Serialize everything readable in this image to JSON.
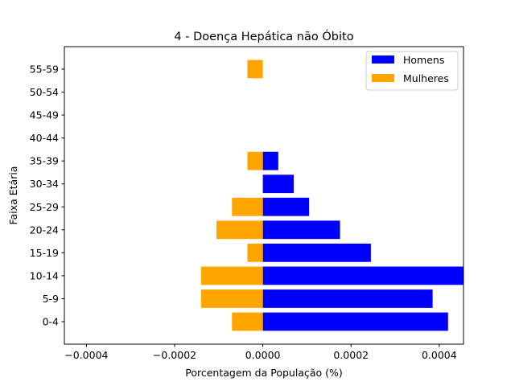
{
  "chart_data": {
    "type": "bar",
    "orientation": "horizontal",
    "title": "4 - Doença Hepática não Óbito",
    "xlabel": "Porcentagem da População (%)",
    "ylabel": "Faixa Etária",
    "categories": [
      "0-4",
      "5-9",
      "10-14",
      "15-19",
      "20-24",
      "25-29",
      "30-34",
      "35-39",
      "40-44",
      "45-49",
      "50-54",
      "55-59"
    ],
    "series": [
      {
        "name": "Homens",
        "color": "#0000ff",
        "values": [
          0.00042,
          0.000385,
          0.00046,
          0.000245,
          0.000175,
          0.000105,
          7e-05,
          3.5e-05,
          0,
          0,
          0,
          0
        ]
      },
      {
        "name": "Mulheres",
        "color": "#ffa500",
        "values": [
          -7e-05,
          -0.00014,
          -0.00014,
          -3.5e-05,
          -0.000105,
          -7e-05,
          0,
          -3.5e-05,
          0,
          0,
          0,
          -3.5e-05
        ]
      }
    ],
    "xlim": [
      -0.00045,
      0.000455
    ],
    "xticks": [
      "−0.0004",
      "−0.0002",
      "0.0000",
      "0.0002",
      "0.0004"
    ],
    "xtick_values": [
      -0.0004,
      -0.0002,
      0,
      0.0002,
      0.0004
    ],
    "grid": false,
    "legend_position": "top-right"
  }
}
